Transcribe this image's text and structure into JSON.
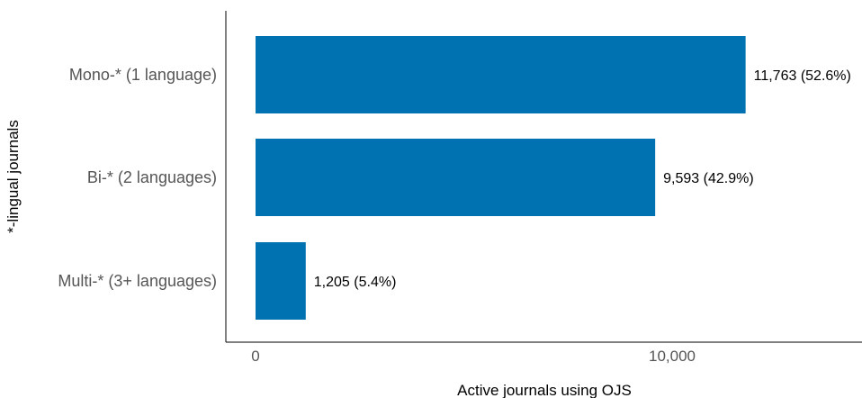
{
  "chart_data": {
    "type": "bar",
    "orientation": "horizontal",
    "categories": [
      "Mono-* (1 language)",
      "Bi-* (2 languages)",
      "Multi-* (3+ languages)"
    ],
    "values": [
      11763,
      9593,
      1205
    ],
    "data_labels": [
      "11,763 (52.6%)",
      "9,593 (42.9%)",
      "1,205 (5.4%)"
    ],
    "xlabel": "Active journals using OJS",
    "ylabel": "*-lingual journals",
    "xlim": [
      0,
      14500
    ],
    "x_ticks": [
      0,
      10000
    ],
    "x_tick_labels": [
      "0",
      "10,000"
    ],
    "bar_color": "#0072B2",
    "grid": false,
    "legend": "none"
  }
}
